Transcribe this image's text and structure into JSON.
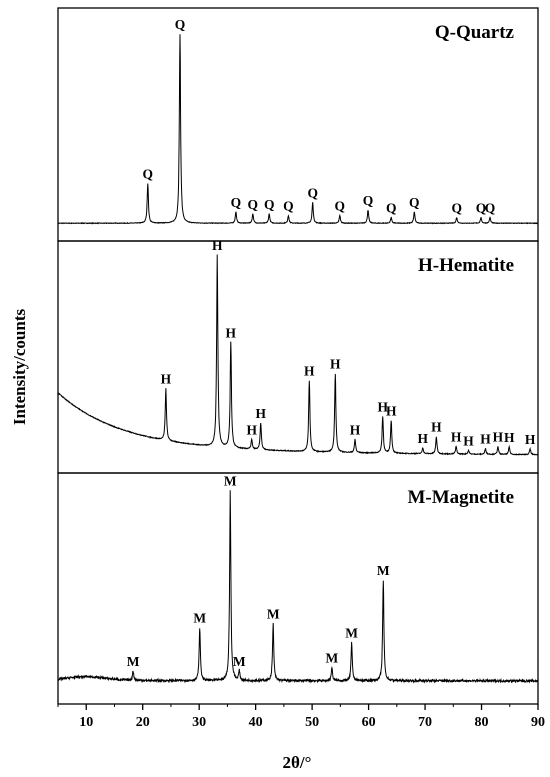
{
  "chart_data": {
    "type": "line",
    "xlabel": "2θ/°",
    "ylabel": "Intensity/counts",
    "xlim": [
      5,
      90
    ],
    "xticks": [
      10,
      20,
      30,
      40,
      50,
      60,
      70,
      80,
      90
    ],
    "grid": false,
    "panels": [
      {
        "name": "Q-Quartz",
        "label": "Q",
        "baseline": 0.02,
        "background": "flat",
        "noise": 0.003,
        "peaks": [
          {
            "x": 20.9,
            "y": 0.21
          },
          {
            "x": 26.6,
            "y": 1.0
          },
          {
            "x": 36.5,
            "y": 0.06
          },
          {
            "x": 39.5,
            "y": 0.05
          },
          {
            "x": 42.4,
            "y": 0.05
          },
          {
            "x": 45.8,
            "y": 0.04
          },
          {
            "x": 50.1,
            "y": 0.11
          },
          {
            "x": 54.9,
            "y": 0.04
          },
          {
            "x": 59.9,
            "y": 0.07
          },
          {
            "x": 64.0,
            "y": 0.03
          },
          {
            "x": 68.1,
            "y": 0.06
          },
          {
            "x": 75.6,
            "y": 0.03
          },
          {
            "x": 79.9,
            "y": 0.03
          },
          {
            "x": 81.5,
            "y": 0.03
          }
        ]
      },
      {
        "name": "H-Hematite",
        "label": "H",
        "baseline": 0.02,
        "background": "decay",
        "noise": 0.004,
        "peaks": [
          {
            "x": 24.1,
            "y": 0.27
          },
          {
            "x": 33.2,
            "y": 1.0
          },
          {
            "x": 35.6,
            "y": 0.55
          },
          {
            "x": 39.3,
            "y": 0.05
          },
          {
            "x": 40.9,
            "y": 0.14
          },
          {
            "x": 49.5,
            "y": 0.37
          },
          {
            "x": 54.1,
            "y": 0.41
          },
          {
            "x": 57.6,
            "y": 0.07
          },
          {
            "x": 62.5,
            "y": 0.19
          },
          {
            "x": 64.0,
            "y": 0.17
          },
          {
            "x": 69.6,
            "y": 0.03
          },
          {
            "x": 72.0,
            "y": 0.09
          },
          {
            "x": 75.5,
            "y": 0.04
          },
          {
            "x": 77.7,
            "y": 0.02
          },
          {
            "x": 80.7,
            "y": 0.03
          },
          {
            "x": 82.9,
            "y": 0.04
          },
          {
            "x": 84.9,
            "y": 0.04
          },
          {
            "x": 88.6,
            "y": 0.03
          }
        ]
      },
      {
        "name": "M-Magnetite",
        "label": "M",
        "baseline": 0.05,
        "background": "hump",
        "noise": 0.012,
        "peaks": [
          {
            "x": 18.3,
            "y": 0.05
          },
          {
            "x": 30.1,
            "y": 0.28
          },
          {
            "x": 35.5,
            "y": 1.0
          },
          {
            "x": 37.1,
            "y": 0.05
          },
          {
            "x": 43.1,
            "y": 0.3
          },
          {
            "x": 53.5,
            "y": 0.07
          },
          {
            "x": 57.0,
            "y": 0.2
          },
          {
            "x": 62.6,
            "y": 0.53
          }
        ]
      }
    ]
  }
}
